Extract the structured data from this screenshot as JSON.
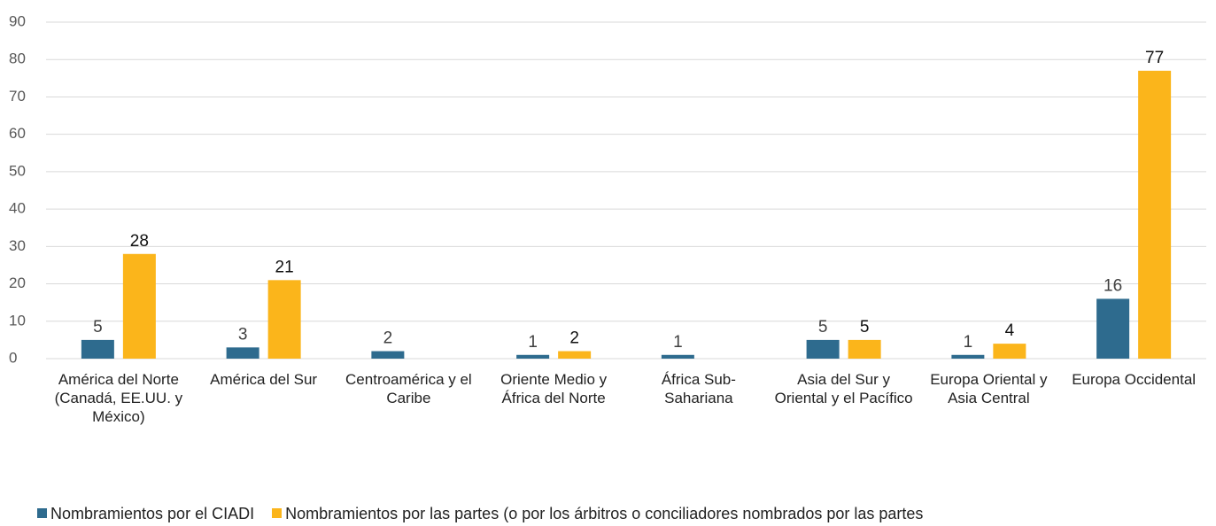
{
  "chart_data": {
    "type": "bar",
    "categories": [
      "América del Norte (Canadá, EE.UU. y México)",
      "América del Sur",
      "Centroamérica y el Caribe",
      "Oriente Medio y África del Norte",
      "África Sub-Sahariana",
      "Asia del Sur y Oriental y el Pacífico",
      "Europa Oriental y Asia Central",
      "Europa Occidental"
    ],
    "series": [
      {
        "name": "Nombramientos por el CIADI",
        "color": "#2e6b8e",
        "values": [
          5,
          3,
          2,
          1,
          1,
          5,
          1,
          16
        ]
      },
      {
        "name": "Nombramientos por las partes (o por los árbitros o conciliadores nombrados por las partes",
        "color": "#fbb51b",
        "values": [
          28,
          21,
          null,
          2,
          null,
          5,
          4,
          77
        ]
      }
    ],
    "ylim": [
      0,
      90
    ],
    "yticks": [
      0,
      10,
      20,
      30,
      40,
      50,
      60,
      70,
      80,
      90
    ],
    "grid": true,
    "legend": "bottom"
  }
}
